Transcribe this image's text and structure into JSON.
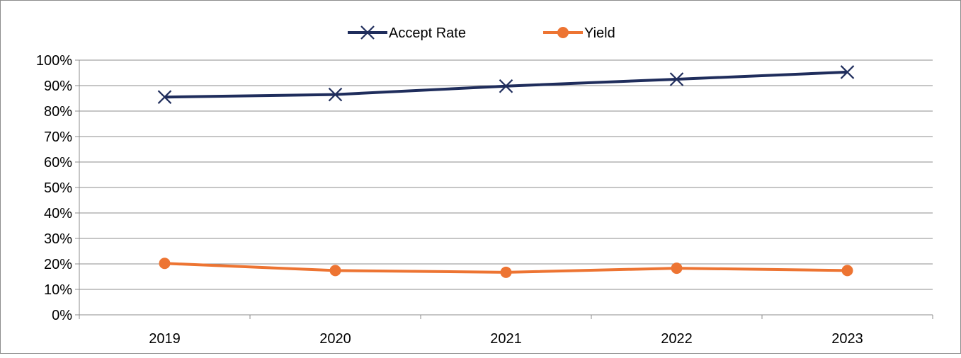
{
  "chart_data": {
    "type": "line",
    "categories": [
      "2019",
      "2020",
      "2021",
      "2022",
      "2023"
    ],
    "series": [
      {
        "name": "Accept Rate",
        "values": [
          0.855,
          0.865,
          0.898,
          0.925,
          0.953
        ],
        "color": "#1f2d5c",
        "marker": "x-icon"
      },
      {
        "name": "Yield",
        "values": [
          0.202,
          0.174,
          0.167,
          0.183,
          0.174
        ],
        "color": "#ed7432",
        "marker": "circle-icon"
      }
    ],
    "ylim": [
      0,
      1
    ],
    "yticks": [
      "0%",
      "10%",
      "20%",
      "30%",
      "40%",
      "50%",
      "60%",
      "70%",
      "80%",
      "90%",
      "100%"
    ],
    "grid": true,
    "legend": "top-center"
  }
}
